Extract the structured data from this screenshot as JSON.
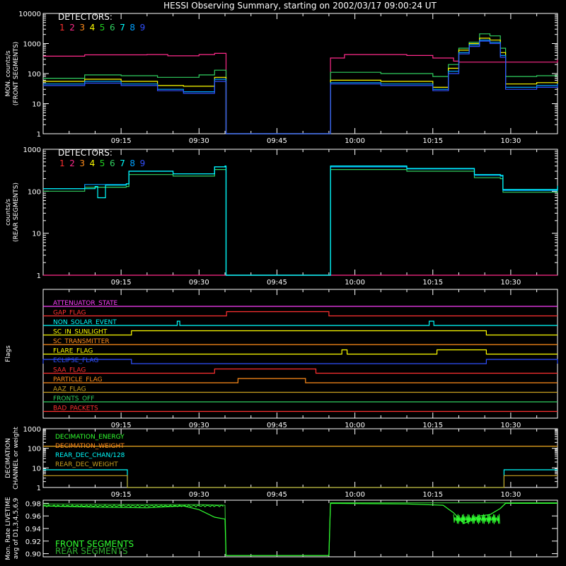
{
  "title": "HESSI Observing Summary, starting on 2002/03/17 09:00:24 UT",
  "detector_colors": [
    "#ff3030",
    "#ff2a8a",
    "#ff8c1a",
    "#ffff00",
    "#20d020",
    "#30d060",
    "#00ffff",
    "#00a0ff",
    "#3050ff"
  ],
  "time_axis": {
    "start": "09:00:24",
    "end": "10:40:00",
    "tick_labels": [
      "09:15",
      "09:30",
      "09:45",
      "10:00",
      "10:15",
      "10:30"
    ],
    "tick_minutes": [
      15,
      30,
      45,
      60,
      75,
      90
    ]
  },
  "chart_data": [
    {
      "type": "line",
      "panel": "front",
      "title": "HESSI Observing Summary, starting on 2002/03/17 09:00:24 UT",
      "ylabel": [
        "MON. counts/s",
        "(FRONT SEGMENTS)"
      ],
      "yscale": "log",
      "ylim": [
        1,
        10000
      ],
      "ytick_labels": [
        "1",
        "10",
        "100",
        "1000",
        "10000"
      ],
      "legend_title": "DETECTORS:",
      "legend_entries": [
        "1",
        "2",
        "3",
        "4",
        "5",
        "6",
        "7",
        "8",
        "9"
      ],
      "x_unit": "minutes after 09:00:24",
      "series": [
        {
          "name": "2",
          "color": "#ff2a8a",
          "points": [
            [
              0,
              380
            ],
            [
              8,
              420
            ],
            [
              20,
              430
            ],
            [
              24,
              390
            ],
            [
              30,
              430
            ],
            [
              33,
              470
            ],
            [
              35,
              470
            ],
            [
              35.2,
              1
            ],
            [
              55,
              1
            ],
            [
              55.3,
              330
            ],
            [
              58,
              430
            ],
            [
              70,
              400
            ],
            [
              75,
              330
            ],
            [
              79,
              260
            ],
            [
              80,
              240
            ],
            [
              99,
              290
            ]
          ]
        },
        {
          "name": "6",
          "color": "#30d060",
          "points": [
            [
              0,
              70
            ],
            [
              8,
              90
            ],
            [
              15,
              85
            ],
            [
              22,
              75
            ],
            [
              30,
              90
            ],
            [
              33,
              130
            ],
            [
              35,
              130
            ],
            [
              35.2,
              1
            ],
            [
              55,
              1
            ],
            [
              55.3,
              110
            ],
            [
              65,
              100
            ],
            [
              75,
              80
            ],
            [
              78,
              200
            ],
            [
              80,
              700
            ],
            [
              82,
              1100
            ],
            [
              84,
              2100
            ],
            [
              86,
              1800
            ],
            [
              88,
              700
            ],
            [
              89,
              80
            ],
            [
              95,
              85
            ],
            [
              99,
              85
            ]
          ]
        },
        {
          "name": "4",
          "color": "#ffff00",
          "points": [
            [
              0,
              55
            ],
            [
              8,
              65
            ],
            [
              15,
              55
            ],
            [
              22,
              40
            ],
            [
              27,
              38
            ],
            [
              33,
              75
            ],
            [
              35,
              75
            ],
            [
              35.2,
              1
            ],
            [
              55,
              1
            ],
            [
              55.3,
              60
            ],
            [
              65,
              55
            ],
            [
              75,
              35
            ],
            [
              78,
              150
            ],
            [
              80,
              600
            ],
            [
              82,
              1000
            ],
            [
              84,
              1500
            ],
            [
              86,
              1300
            ],
            [
              88,
              500
            ],
            [
              89,
              45
            ],
            [
              95,
              50
            ],
            [
              99,
              55
            ]
          ]
        },
        {
          "name": "8",
          "color": "#00a0ff",
          "points": [
            [
              0,
              45
            ],
            [
              8,
              55
            ],
            [
              15,
              45
            ],
            [
              22,
              30
            ],
            [
              27,
              25
            ],
            [
              33,
              65
            ],
            [
              35,
              65
            ],
            [
              35.2,
              1
            ],
            [
              55,
              1
            ],
            [
              55.3,
              50
            ],
            [
              65,
              45
            ],
            [
              75,
              30
            ],
            [
              78,
              120
            ],
            [
              80,
              500
            ],
            [
              82,
              900
            ],
            [
              84,
              1300
            ],
            [
              86,
              1100
            ],
            [
              88,
              400
            ],
            [
              89,
              35
            ],
            [
              95,
              40
            ],
            [
              99,
              45
            ]
          ]
        },
        {
          "name": "9",
          "color": "#3050ff",
          "points": [
            [
              0,
              40
            ],
            [
              8,
              48
            ],
            [
              15,
              40
            ],
            [
              22,
              27
            ],
            [
              27,
              22
            ],
            [
              33,
              55
            ],
            [
              35,
              55
            ],
            [
              35.2,
              1
            ],
            [
              55,
              1
            ],
            [
              55.3,
              45
            ],
            [
              65,
              40
            ],
            [
              75,
              27
            ],
            [
              78,
              100
            ],
            [
              80,
              450
            ],
            [
              82,
              800
            ],
            [
              84,
              1200
            ],
            [
              86,
              1000
            ],
            [
              88,
              350
            ],
            [
              89,
              30
            ],
            [
              95,
              35
            ],
            [
              99,
              40
            ]
          ]
        }
      ]
    },
    {
      "type": "line",
      "panel": "rear",
      "ylabel": [
        "counts/s",
        "(REAR SEGMENTS)"
      ],
      "yscale": "log",
      "ylim": [
        1,
        1000
      ],
      "ytick_labels": [
        "1",
        "10",
        "100",
        "1000"
      ],
      "legend_title": "DETECTORS:",
      "legend_entries": [
        "1",
        "2",
        "3",
        "4",
        "5",
        "6",
        "7",
        "8",
        "9"
      ],
      "series": [
        {
          "name": "2",
          "color": "#ff2a8a",
          "points": [
            [
              0,
              1
            ],
            [
              99,
              1
            ]
          ]
        },
        {
          "name": "6",
          "color": "#30d060",
          "points": [
            [
              0,
              100
            ],
            [
              8,
              125
            ],
            [
              16,
              130
            ],
            [
              16.5,
              250
            ],
            [
              25,
              230
            ],
            [
              33,
              330
            ],
            [
              35,
              330
            ],
            [
              35.2,
              1
            ],
            [
              55,
              1
            ],
            [
              55.3,
              330
            ],
            [
              70,
              300
            ],
            [
              83,
              210
            ],
            [
              88,
              200
            ],
            [
              88.5,
              95
            ],
            [
              99,
              115
            ]
          ]
        },
        {
          "name": "8",
          "color": "#00a0ff",
          "points": [
            [
              0,
              115
            ],
            [
              8,
              145
            ],
            [
              16,
              150
            ],
            [
              16.5,
              300
            ],
            [
              25,
              260
            ],
            [
              33,
              380
            ],
            [
              35,
              380
            ],
            [
              35.2,
              1
            ],
            [
              55,
              1
            ],
            [
              55.3,
              380
            ],
            [
              70,
              340
            ],
            [
              83,
              240
            ],
            [
              88,
              230
            ],
            [
              88.5,
              105
            ],
            [
              99,
              130
            ]
          ]
        },
        {
          "name": "7",
          "color": "#00ffff",
          "points": [
            [
              0,
              115
            ],
            [
              10,
              130
            ],
            [
              10.5,
              70
            ],
            [
              11.5,
              70
            ],
            [
              12,
              140
            ],
            [
              16,
              150
            ],
            [
              16.5,
              300
            ],
            [
              25,
              260
            ],
            [
              33,
              380
            ],
            [
              35,
              400
            ],
            [
              35.2,
              1
            ],
            [
              55,
              1
            ],
            [
              55.3,
              400
            ],
            [
              70,
              350
            ],
            [
              83,
              250
            ],
            [
              88,
              240
            ],
            [
              88.5,
              110
            ],
            [
              99,
              135
            ]
          ]
        }
      ]
    },
    {
      "type": "line",
      "panel": "flags",
      "ylabel": [
        "Flags"
      ],
      "flags": [
        {
          "name": "ATTENUATOR_STATE",
          "color": "#ff40ff",
          "high": []
        },
        {
          "name": "GAP_FLAG",
          "color": "#ff3030",
          "high": [
            [
              35.3,
              55
            ]
          ]
        },
        {
          "name": "NON_SOLAR_EVENT",
          "color": "#00ffff",
          "high": [
            [
              25.8,
              26.3
            ],
            [
              74.3,
              75.2
            ]
          ]
        },
        {
          "name": "SC_IN_SUNLIGHT",
          "color": "#ffff00",
          "high": [
            [
              17,
              85.3
            ]
          ]
        },
        {
          "name": "SC_TRANSMITTER",
          "color": "#ff8c1a",
          "high": []
        },
        {
          "name": "FLARE_FLAG",
          "color": "#ffff00",
          "high": [
            [
              57.5,
              58.5
            ],
            [
              75.8,
              85.3
            ]
          ]
        },
        {
          "name": "ECLIPSE_FLAG",
          "color": "#3050ff",
          "high": [
            [
              0,
              17
            ],
            [
              85.3,
              99
            ]
          ]
        },
        {
          "name": "SAA_FLAG",
          "color": "#ff3030",
          "high": [
            [
              33,
              52.5
            ]
          ]
        },
        {
          "name": "PARTICLE_FLAG",
          "color": "#ff8c1a",
          "high": [
            [
              37.5,
              50.5
            ]
          ]
        },
        {
          "name": "AAZ_FLAG",
          "color": "#c8a020",
          "high": []
        },
        {
          "name": "FRONTS_OFF",
          "color": "#30d060",
          "high": []
        },
        {
          "name": "BAD_PACKETS",
          "color": "#ff3030",
          "high": []
        }
      ]
    },
    {
      "type": "line",
      "panel": "decimation",
      "ylabel": [
        "DECIMATION",
        "CHANNEL or weight"
      ],
      "yscale": "log",
      "ylim": [
        1,
        1000
      ],
      "ytick_labels": [
        "1",
        "10",
        "100",
        "1000"
      ],
      "series": [
        {
          "name": "DECIMATION_ENERGY",
          "color": "#30ff30",
          "points": [
            [
              0,
              128
            ],
            [
              99,
              128
            ]
          ]
        },
        {
          "name": "DECIMATION_WEIGHT",
          "color": "#ff8c1a",
          "points": [
            [
              0,
              128
            ],
            [
              99,
              128
            ]
          ]
        },
        {
          "name": "REAR_DEC_CHAN/128",
          "color": "#00ffff",
          "points": [
            [
              0,
              8
            ],
            [
              16,
              8
            ],
            [
              16.2,
              1
            ],
            [
              88.5,
              1
            ],
            [
              88.7,
              8
            ],
            [
              99,
              8
            ]
          ]
        },
        {
          "name": "REAR_DEC_WEIGHT",
          "color": "#c8a020",
          "points": [
            [
              0,
              4
            ],
            [
              16,
              4
            ],
            [
              16.2,
              1
            ],
            [
              88.5,
              1
            ],
            [
              88.7,
              4
            ],
            [
              99,
              4
            ]
          ]
        }
      ]
    },
    {
      "type": "line",
      "panel": "livetime",
      "ylabel": [
        "Mon. Rate LIVETIME",
        "avg of D1,3,4,5,6,9"
      ],
      "ylim": [
        0.895,
        0.985
      ],
      "ytick_labels": [
        "0.90",
        "0.92",
        "0.94",
        "0.96",
        "0.98"
      ],
      "series": [
        {
          "name": "FRONT SEGMENTS",
          "color": "#30ff30",
          "points": [
            [
              0,
              0.976
            ],
            [
              10,
              0.974
            ],
            [
              20,
              0.973
            ],
            [
              27,
              0.976
            ],
            [
              30,
              0.97
            ],
            [
              33,
              0.958
            ],
            [
              35,
              0.955
            ],
            [
              35.2,
              0.897
            ],
            [
              55,
              0.897
            ],
            [
              55.3,
              0.98
            ],
            [
              70,
              0.979
            ],
            [
              77,
              0.977
            ],
            [
              79,
              0.965
            ],
            [
              81,
              0.948
            ],
            [
              82,
              0.952
            ],
            [
              84,
              0.96
            ],
            [
              86,
              0.962
            ],
            [
              88,
              0.972
            ],
            [
              89,
              0.98
            ],
            [
              99,
              0.98
            ]
          ]
        },
        {
          "name": "REAR SEGMENTS",
          "color": "#30b030",
          "points": [
            [
              0,
              0.979
            ],
            [
              20,
              0.978
            ],
            [
              30,
              0.978
            ],
            [
              35,
              0.977
            ],
            [
              35.2,
              0.897
            ],
            [
              55,
              0.897
            ],
            [
              55.3,
              0.981
            ],
            [
              99,
              0.981
            ]
          ]
        }
      ]
    }
  ]
}
